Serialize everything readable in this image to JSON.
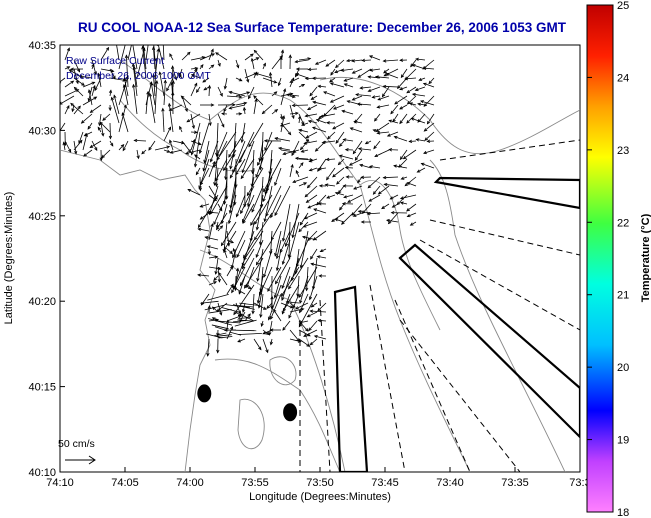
{
  "chart_data": {
    "type": "vector-field map",
    "title": "RU COOL  NOAA-12  Sea Surface Temperature:  December 26, 2006 1053 GMT",
    "xlabel": "Longitude (Degrees:Minutes)",
    "ylabel": "Latitude (Degrees:Minutes)",
    "x_ticks": [
      "74:10",
      "74:05",
      "74:00",
      "73:55",
      "73:50",
      "73:45",
      "73:40",
      "73:35",
      "73:3"
    ],
    "y_ticks": [
      "40:35",
      "40:30",
      "40:25",
      "40:20",
      "40:15",
      "40:10"
    ],
    "xlim_minutes_west_of_73": [
      70,
      30
    ],
    "ylim_minutes_north_of_40": [
      10,
      35
    ],
    "annotation_line1": "Raw Surface Current",
    "annotation_line2": "December 26, 2006 1000 GMT",
    "scale_label": "50 cm/s",
    "colorbar": {
      "label": "Temperature (°C)",
      "ticks": [
        "25",
        "24",
        "23",
        "22",
        "21",
        "20",
        "19",
        "18"
      ],
      "range": [
        18,
        25
      ],
      "colors": [
        "#ff80ff",
        "#c040ff",
        "#0000ff",
        "#00c0ff",
        "#00ffe0",
        "#40ff40",
        "#ffff00",
        "#ffa000",
        "#ff2000",
        "#c00000"
      ]
    },
    "grid": false,
    "markers": [
      {
        "lon_min_w": 58.9,
        "lat_min": 14.6
      },
      {
        "lon_min_w": 52.3,
        "lat_min": 13.5
      }
    ]
  }
}
